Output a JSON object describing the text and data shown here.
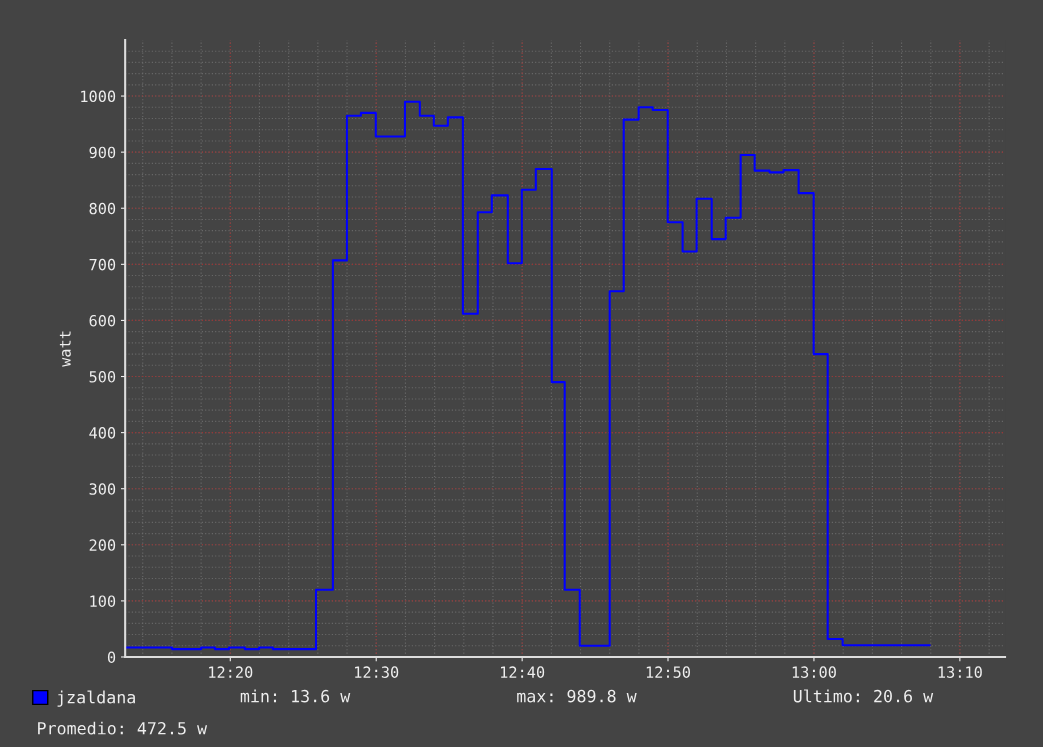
{
  "chart_data": {
    "type": "step",
    "ylabel": "watt",
    "x": [
      12.2132,
      12.2668,
      12.3,
      12.3158,
      12.3318,
      12.35,
      12.3662,
      12.382,
      12.4312,
      12.4505,
      12.4665,
      12.4825,
      12.4995,
      12.5328,
      12.5498,
      12.5658,
      12.5818,
      12.599,
      12.616,
      12.632,
      12.6503,
      12.6663,
      12.6823,
      12.7005,
      12.7153,
      12.7325,
      12.7667,
      12.7827,
      12.7998,
      12.8158,
      12.833,
      12.85,
      12.866,
      12.8832,
      12.8992,
      12.9163,
      12.9323,
      12.9493,
      12.9653,
      12.9825,
      12.9997,
      13.0157,
      13.0328,
      13.132
    ],
    "series": [
      {
        "name": "jzaldana",
        "color": "#0000ff",
        "values": [
          17,
          14,
          17,
          14,
          17,
          14,
          17,
          14,
          120,
          707,
          965,
          970,
          928,
          990,
          965,
          947,
          962,
          612,
          793,
          823,
          702,
          833,
          870,
          490,
          120,
          20,
          652,
          958,
          980,
          975,
          775,
          723,
          817,
          745,
          783,
          895,
          867,
          864,
          868,
          827,
          540,
          32,
          21,
          21
        ]
      }
    ],
    "xlim": [
      12.2132,
      13.2183
    ],
    "ylim": [
      0,
      1100
    ],
    "xticks": [
      {
        "value": 12.3333,
        "label": "12:20"
      },
      {
        "value": 12.5,
        "label": "12:30"
      },
      {
        "value": 12.6667,
        "label": "12:40"
      },
      {
        "value": 12.8333,
        "label": "12:50"
      },
      {
        "value": 13.0,
        "label": "13:00"
      },
      {
        "value": 13.1667,
        "label": "13:10"
      }
    ],
    "yticks": [
      0,
      100,
      200,
      300,
      400,
      500,
      600,
      700,
      800,
      900,
      1000
    ],
    "grid": true,
    "legend": "bottom left",
    "annotations": [
      "min: 13.6 w",
      "max: 989.8 w",
      "Ultimo: 20.6 w",
      "Promedio: 472.5 w"
    ]
  }
}
